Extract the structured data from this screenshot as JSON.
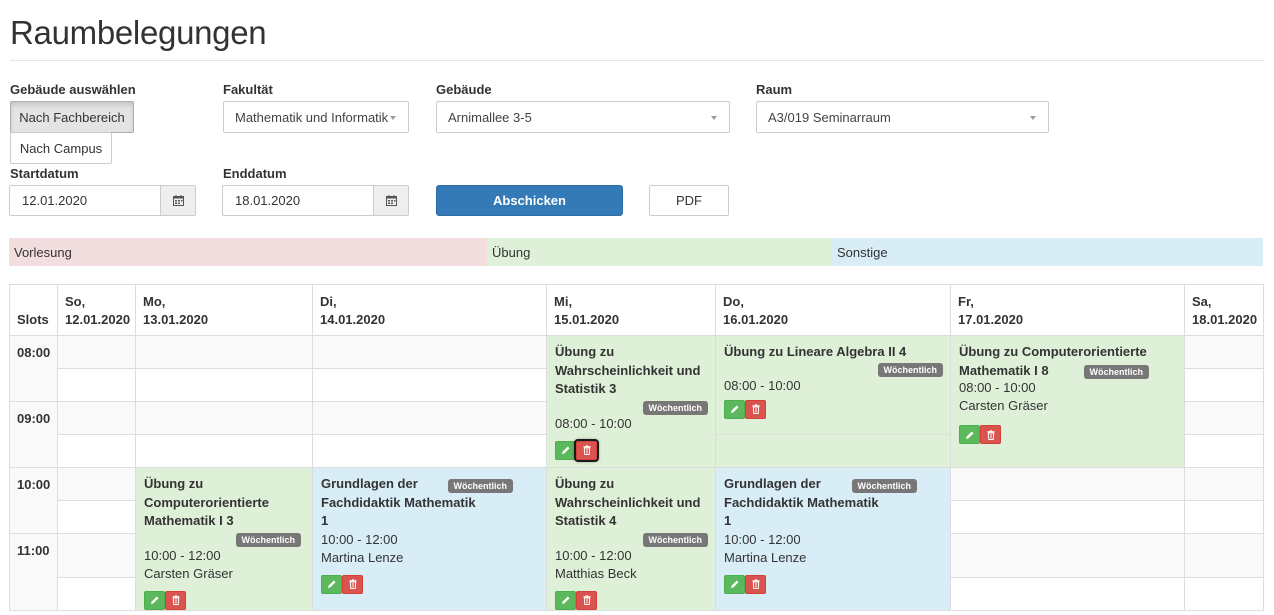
{
  "page": {
    "title": "Raumbelegungen"
  },
  "filters": {
    "building_select_label": "Gebäude auswählen",
    "btn_by_faculty": "Nach Fachbereich",
    "btn_by_campus": "Nach Campus",
    "faculty_label": "Fakultät",
    "faculty_value": "Mathematik und Informatik",
    "building_label": "Gebäude",
    "building_value": "Arnimallee 3-5",
    "room_label": "Raum",
    "room_value": "A3/019 Seminarraum",
    "start_label": "Startdatum",
    "start_value": "12.01.2020",
    "end_label": "Enddatum",
    "end_value": "18.01.2020",
    "submit_label": "Abschicken",
    "pdf_label": "PDF"
  },
  "legend": [
    {
      "label": "Vorlesung",
      "color": "#f2dede"
    },
    {
      "label": "Übung",
      "color": "#dff0d8"
    },
    {
      "label": "Sonstige",
      "color": "#d9edf7"
    }
  ],
  "calendar": {
    "slots_header": "Slots",
    "days": [
      {
        "name": "So,",
        "date": "12.01.2020"
      },
      {
        "name": "Mo,",
        "date": "13.01.2020"
      },
      {
        "name": "Di,",
        "date": "14.01.2020"
      },
      {
        "name": "Mi,",
        "date": "15.01.2020"
      },
      {
        "name": "Do,",
        "date": "16.01.2020"
      },
      {
        "name": "Fr,",
        "date": "17.01.2020"
      },
      {
        "name": "Sa,",
        "date": "18.01.2020"
      }
    ],
    "times": [
      "08:00",
      "09:00",
      "10:00",
      "11:00"
    ],
    "events": {
      "wed_08": {
        "title": "Übung zu Wahrscheinlichkeit und Statistik 3",
        "badge": "Wöchentlich",
        "time": "08:00 - 10:00",
        "person": ""
      },
      "thu_08": {
        "title": "Übung zu Lineare Algebra II 4",
        "badge": "Wöchentlich",
        "time": "08:00 - 10:00",
        "person": ""
      },
      "fri_08": {
        "title": "Übung zu Computerorientierte Mathematik I 8",
        "badge": "Wöchentlich",
        "time": "08:00 - 10:00",
        "person": "Carsten Gräser"
      },
      "mon_10": {
        "title": "Übung zu Computerorientierte Mathematik I 3",
        "badge": "Wöchentlich",
        "time": "10:00 - 12:00",
        "person": "Carsten Gräser"
      },
      "tue_10": {
        "title": "Grundlagen der Fachdidaktik Mathematik 1",
        "badge": "Wöchentlich",
        "time": "10:00 - 12:00",
        "person": "Martina Lenze"
      },
      "wed_10": {
        "title": "Übung zu Wahrscheinlichkeit und Statistik 4",
        "badge": "Wöchentlich",
        "time": "10:00 - 12:00",
        "person": "Matthias Beck"
      },
      "thu_10": {
        "title": "Grundlagen der Fachdidaktik Mathematik 1",
        "badge": "Wöchentlich",
        "time": "10:00 - 12:00",
        "person": "Martina Lenze"
      }
    }
  }
}
